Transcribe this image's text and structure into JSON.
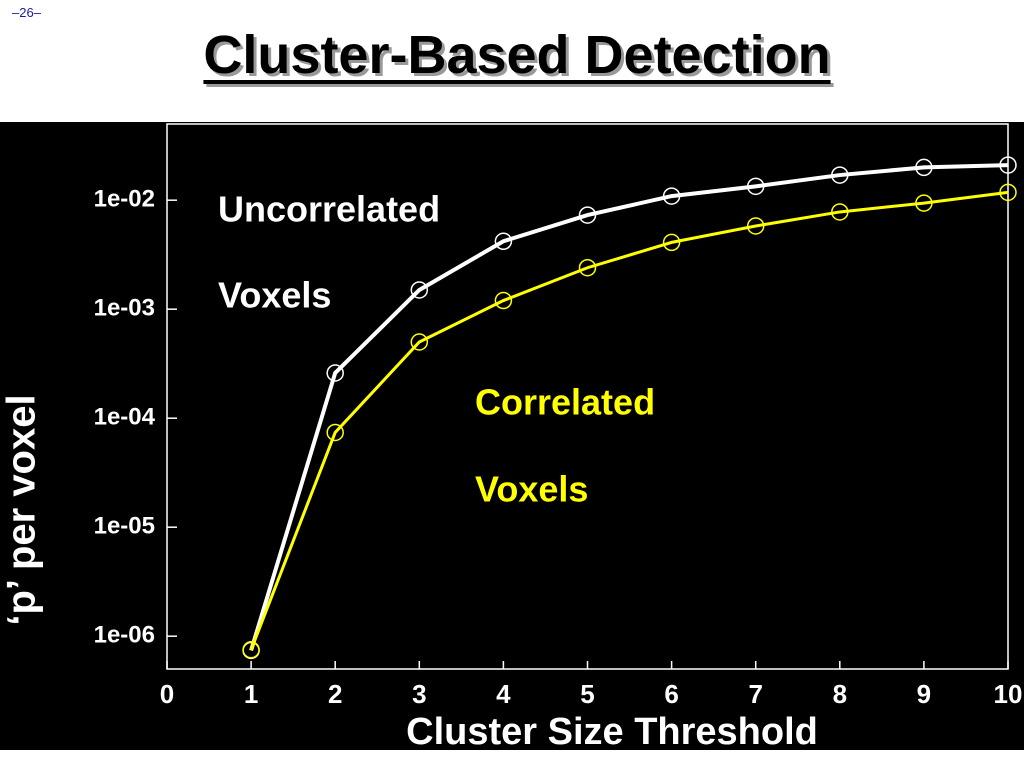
{
  "slide_number": "–26–",
  "chart_data": {
    "type": "line",
    "title": "Cluster-Based Detection",
    "xlabel": "Cluster Size Threshold",
    "ylabel": "‘p’ per voxel",
    "xlim": [
      0,
      10
    ],
    "xticks": [
      0,
      1,
      2,
      3,
      4,
      5,
      6,
      7,
      8,
      9,
      10
    ],
    "ylim": [
      5e-07,
      0.05
    ],
    "log_y": true,
    "yticks": [
      {
        "value": 0.01,
        "label": "1e-02"
      },
      {
        "value": 0.001,
        "label": "1e-03"
      },
      {
        "value": 0.0001,
        "label": "1e-04"
      },
      {
        "value": 1e-05,
        "label": "1e-05"
      },
      {
        "value": 1e-06,
        "label": "1e-06"
      }
    ],
    "x": [
      1,
      2,
      3,
      4,
      5,
      6,
      7,
      8,
      9,
      10
    ],
    "series": [
      {
        "label": [
          "Uncorrelated",
          "Voxels"
        ],
        "color": "#ffffff",
        "values": [
          7.4e-07,
          0.00026,
          0.0015,
          0.0042,
          0.0073,
          0.0109,
          0.0134,
          0.017,
          0.02,
          0.021
        ]
      },
      {
        "label": [
          "Correlated",
          "Voxels"
        ],
        "color": "#ffff00",
        "values": [
          7.5e-07,
          7.4e-05,
          0.0005,
          0.0012,
          0.0024,
          0.0041,
          0.0058,
          0.0078,
          0.0094,
          0.0118
        ]
      }
    ]
  }
}
